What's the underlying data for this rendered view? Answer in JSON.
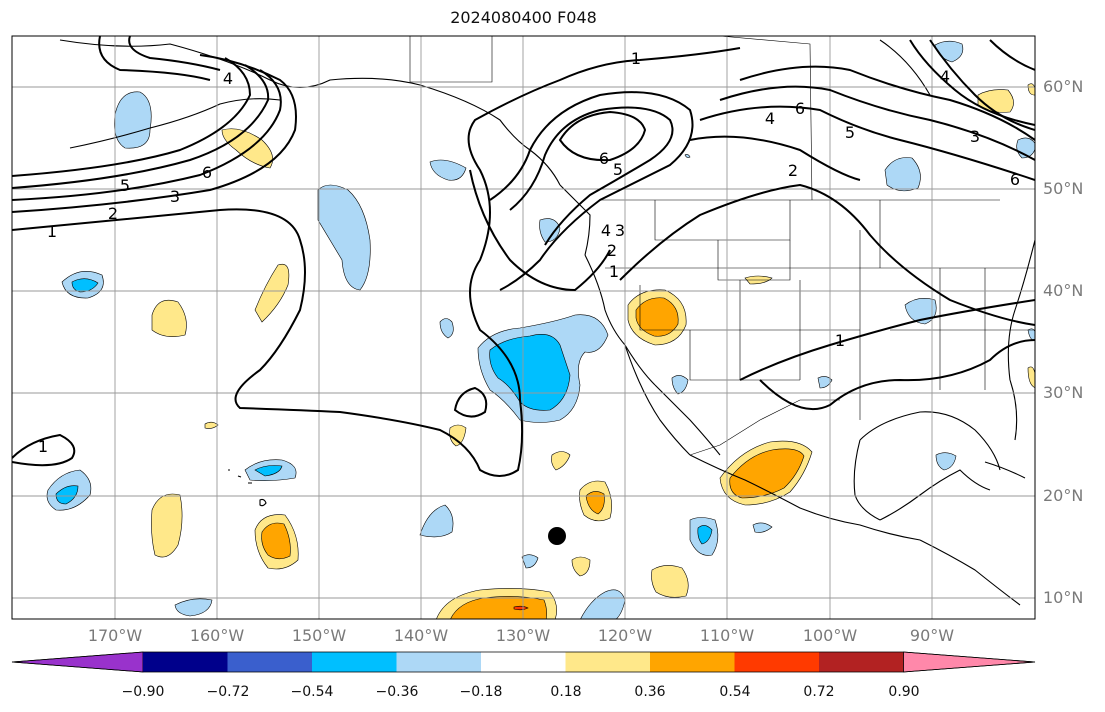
{
  "title": "2024080400 F048",
  "latitude_labels": [
    "60°N",
    "50°N",
    "40°N",
    "30°N",
    "20°N",
    "10°N"
  ],
  "longitude_labels": [
    "170°W",
    "160°W",
    "150°W",
    "140°W",
    "130°W",
    "120°W",
    "110°W",
    "100°W",
    "90°W"
  ],
  "colorbar": {
    "tick_labels": [
      "−0.90",
      "−0.72",
      "−0.54",
      "−0.36",
      "−0.18",
      "0.18",
      "0.36",
      "0.54",
      "0.72",
      "0.90"
    ],
    "colors": [
      "#9932CC",
      "#00008B",
      "#3A5FCD",
      "#00BFFF",
      "#ADD8F6",
      "#FFFFFF",
      "#FFE88A",
      "#FFA500",
      "#FF3A00",
      "#B22222",
      "#FF88AA"
    ]
  },
  "contour_labels": [
    "1",
    "2",
    "3",
    "4",
    "5",
    "6"
  ],
  "colors": {
    "cool_light": "#ADD8F6",
    "cool_mid": "#00BFFF",
    "warm_light": "#FFE88A",
    "warm_mid": "#FFA500",
    "warm_strong": "#FF3A00"
  },
  "marker": "black-dot"
}
